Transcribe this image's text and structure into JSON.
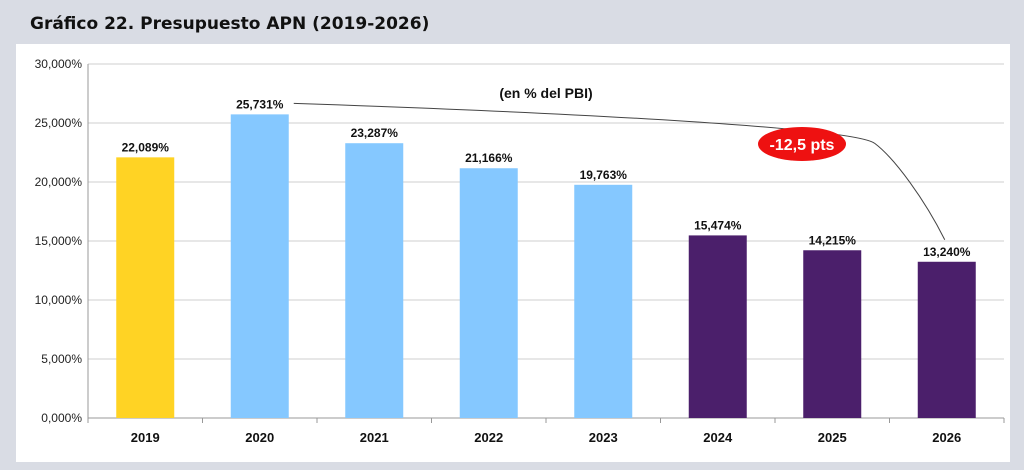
{
  "header": {
    "title": "Gráfico 22. Presupuesto APN (2019-2026)"
  },
  "chart_data": {
    "type": "bar",
    "title": "Gráfico 22. Presupuesto APN (2019-2026)",
    "subtitle": "(en % del PBI)",
    "xlabel": "",
    "ylabel": "",
    "categories": [
      "2019",
      "2020",
      "2021",
      "2022",
      "2023",
      "2024",
      "2025",
      "2026"
    ],
    "values": [
      22.089,
      25.731,
      23.287,
      21.166,
      19.763,
      15.474,
      14.215,
      13.24
    ],
    "value_labels": [
      "22,089%",
      "25,731%",
      "23,287%",
      "21,166%",
      "19,763%",
      "15,474%",
      "14,215%",
      "13,240%"
    ],
    "bar_colors": [
      "#FFD324",
      "#85C8FF",
      "#85C8FF",
      "#85C8FF",
      "#85C8FF",
      "#4B1F6B",
      "#4B1F6B",
      "#4B1F6B"
    ],
    "ylim": [
      0,
      30
    ],
    "yticks": [
      0,
      5,
      10,
      15,
      20,
      25,
      30
    ],
    "ytick_labels": [
      "0,000%",
      "5,000%",
      "10,000%",
      "15,000%",
      "20,000%",
      "25,000%",
      "30,000%"
    ],
    "grid": true,
    "annotation": {
      "text": "-12,5 pts",
      "from": "2020",
      "to": "2026",
      "color": "#EE1111"
    }
  }
}
